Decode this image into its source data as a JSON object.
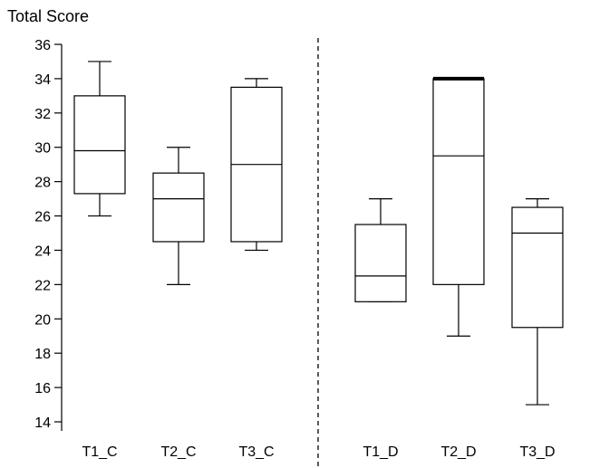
{
  "chart_data": {
    "type": "box",
    "ylabel": "Total Score",
    "xlabel": "",
    "ylim": [
      14,
      36
    ],
    "yticks": [
      14,
      16,
      18,
      20,
      22,
      24,
      26,
      28,
      30,
      32,
      34,
      36
    ],
    "categories": [
      "T1_C",
      "T2_C",
      "T3_C",
      "T1_D",
      "T2_D",
      "T3_D"
    ],
    "boxes": [
      {
        "label": "T1_C",
        "min": 26,
        "q1": 27.3,
        "median": 29.8,
        "q3": 33,
        "max": 35
      },
      {
        "label": "T2_C",
        "min": 22,
        "q1": 24.5,
        "median": 27,
        "q3": 28.5,
        "max": 30
      },
      {
        "label": "T3_C",
        "min": 24,
        "q1": 24.5,
        "median": 29,
        "q3": 33.5,
        "max": 34
      },
      {
        "label": "T1_D",
        "min": 21,
        "q1": 21,
        "median": 22.5,
        "q3": 25.5,
        "max": 27
      },
      {
        "label": "T2_D",
        "min": 19,
        "q1": 22,
        "median": 29.5,
        "q3": 34,
        "max": 34
      },
      {
        "label": "T3_D",
        "min": 15,
        "q1": 19.5,
        "median": 25,
        "q3": 26.5,
        "max": 27
      }
    ],
    "divider": "dashed vertical line between T3_C and T1_D",
    "grid": false,
    "legend": "none"
  }
}
